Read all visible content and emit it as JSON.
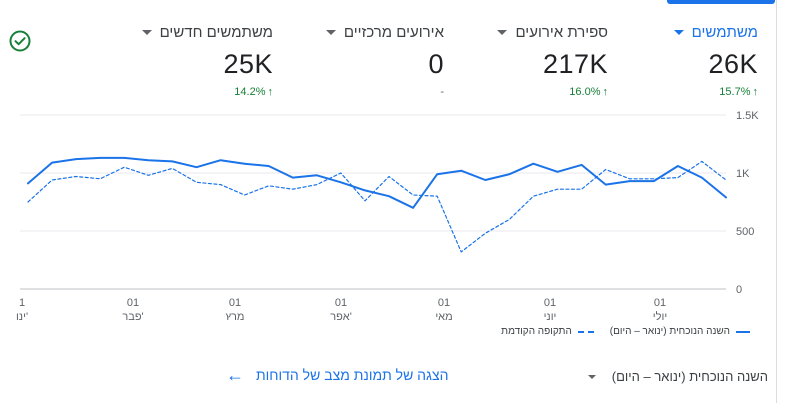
{
  "status": {
    "icon": "check-circle-icon"
  },
  "metrics": [
    {
      "label": "משתמשים",
      "value": "26K",
      "change": "15.7%",
      "trend": "up",
      "active": true
    },
    {
      "label": "ספירת אירועים",
      "value": "217K",
      "change": "16.0%",
      "trend": "up",
      "active": false
    },
    {
      "label": "אירועים מרכזיים",
      "value": "0",
      "change": "-",
      "trend": "none",
      "active": false
    },
    {
      "label": "משתמשים חדשים",
      "value": "25K",
      "change": "14.2%",
      "trend": "up",
      "active": false
    }
  ],
  "chart_data": {
    "type": "line",
    "ylim": [
      0,
      1500
    ],
    "y_ticks": [
      "0",
      "500",
      "1K",
      "1.5K"
    ],
    "x_ticks": [
      {
        "day": "1",
        "month": "ינו'"
      },
      {
        "day": "01",
        "month": "פבר'"
      },
      {
        "day": "01",
        "month": "מרץ"
      },
      {
        "day": "01",
        "month": "אפר'"
      },
      {
        "day": "01",
        "month": "מאי"
      },
      {
        "day": "01",
        "month": "יוני"
      },
      {
        "day": "01",
        "month": "יולי"
      }
    ],
    "grid": true,
    "series": [
      {
        "name": "השנה הנוכחית (ינואר – היום)",
        "style": "solid",
        "values": [
          910,
          1090,
          1120,
          1130,
          1130,
          1110,
          1100,
          1050,
          1110,
          1080,
          1060,
          960,
          980,
          920,
          850,
          800,
          700,
          990,
          1020,
          940,
          990,
          1080,
          1010,
          1070,
          900,
          930,
          930,
          1060,
          960,
          790
        ]
      },
      {
        "name": "התקופה הקודמת",
        "style": "dashed",
        "values": [
          750,
          940,
          970,
          950,
          1050,
          980,
          1040,
          920,
          900,
          810,
          890,
          860,
          900,
          1000,
          760,
          970,
          810,
          800,
          320,
          480,
          600,
          800,
          860,
          860,
          1030,
          950,
          950,
          960,
          1100,
          940
        ]
      }
    ],
    "legend_position": "bottom-right"
  },
  "legend": {
    "current": "השנה הנוכחית (ינואר – היום)",
    "previous": "התקופה הקודמת"
  },
  "footer": {
    "date_range": "השנה הנוכחית (ינואר – היום)",
    "link": "הצגה של תמונת מצב של הדוחות"
  }
}
